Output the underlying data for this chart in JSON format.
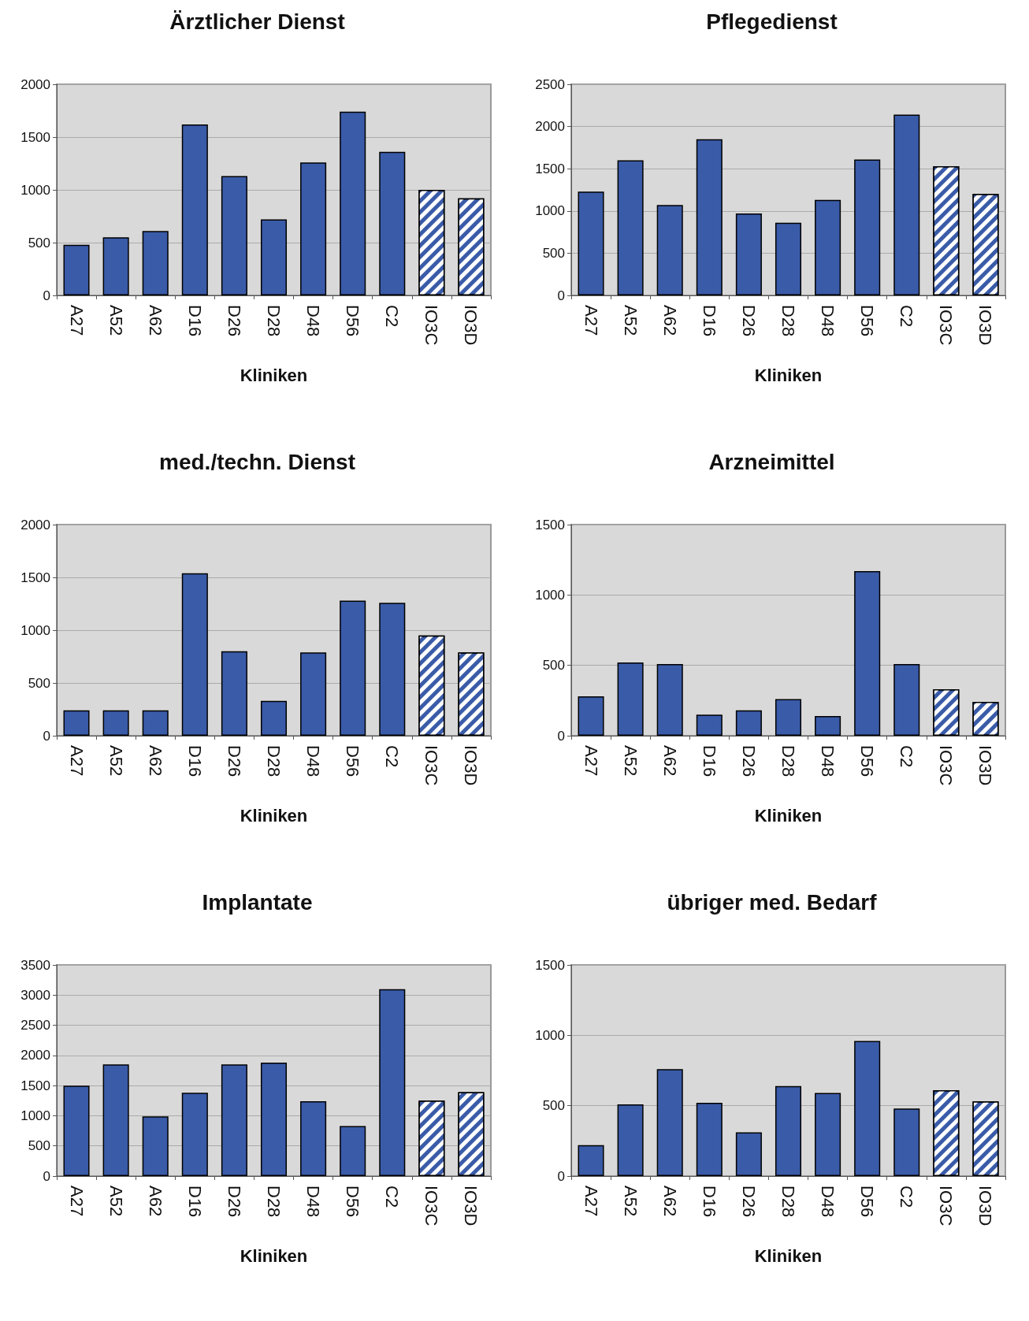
{
  "chart_data": [
    {
      "type": "bar",
      "title": "Ärztlicher Dienst",
      "xlabel": "Kliniken",
      "categories": [
        "A27",
        "A52",
        "A62",
        "D16",
        "D26",
        "D28",
        "D48",
        "D56",
        "C2",
        "IO3C",
        "IO3D"
      ],
      "series": [
        {
          "color": "#3a5ba8",
          "values": [
            480,
            550,
            610,
            1620,
            1130,
            720,
            1260,
            1740,
            1360,
            null,
            null
          ]
        },
        {
          "color": "#3a5ba8",
          "values": [
            null,
            null,
            null,
            null,
            null,
            null,
            null,
            null,
            null,
            1000,
            920
          ]
        }
      ],
      "ylim": [
        0,
        2000
      ],
      "yticks": [
        0,
        500,
        1000,
        1500,
        2000
      ],
      "grid": "y"
    },
    {
      "type": "bar",
      "title": "Pflegedienst",
      "xlabel": "Kliniken",
      "categories": [
        "A27",
        "A52",
        "A62",
        "D16",
        "D26",
        "D28",
        "D48",
        "D56",
        "C2",
        "IO3C",
        "IO3D"
      ],
      "series": [
        {
          "color": "#3a5ba8",
          "values": [
            1230,
            1600,
            1070,
            1850,
            970,
            860,
            1130,
            1610,
            2140,
            null,
            null
          ]
        },
        {
          "color": "#3a5ba8",
          "values": [
            null,
            null,
            null,
            null,
            null,
            null,
            null,
            null,
            null,
            1530,
            1200
          ]
        }
      ],
      "ylim": [
        0,
        2500
      ],
      "yticks": [
        0,
        500,
        1000,
        1500,
        2000,
        2500
      ],
      "grid": "y"
    },
    {
      "type": "bar",
      "title": "med./techn. Dienst",
      "xlabel": "Kliniken",
      "categories": [
        "A27",
        "A52",
        "A62",
        "D16",
        "D26",
        "D28",
        "D48",
        "D56",
        "C2",
        "IO3C",
        "IO3D"
      ],
      "series": [
        {
          "color": "#3a5ba8",
          "values": [
            240,
            240,
            240,
            1540,
            800,
            330,
            790,
            1280,
            1260,
            null,
            null
          ]
        },
        {
          "color": "#3a5ba8",
          "values": [
            null,
            null,
            null,
            null,
            null,
            null,
            null,
            null,
            null,
            950,
            790
          ]
        }
      ],
      "ylim": [
        0,
        2000
      ],
      "yticks": [
        0,
        500,
        1000,
        1500,
        2000
      ],
      "grid": "y"
    },
    {
      "type": "bar",
      "title": "Arzneimittel",
      "xlabel": "Kliniken",
      "categories": [
        "A27",
        "A52",
        "A62",
        "D16",
        "D26",
        "D28",
        "D48",
        "D56",
        "C2",
        "IO3C",
        "IO3D"
      ],
      "series": [
        {
          "color": "#3a5ba8",
          "values": [
            280,
            520,
            510,
            150,
            180,
            260,
            140,
            1170,
            510,
            null,
            null
          ]
        },
        {
          "color": "#3a5ba8",
          "values": [
            null,
            null,
            null,
            null,
            null,
            null,
            null,
            null,
            null,
            330,
            240
          ]
        }
      ],
      "ylim": [
        0,
        1500
      ],
      "yticks": [
        0,
        500,
        1000,
        1500
      ],
      "grid": "y"
    },
    {
      "type": "bar",
      "title": "Implantate",
      "xlabel": "Kliniken",
      "categories": [
        "A27",
        "A52",
        "A62",
        "D16",
        "D26",
        "D28",
        "D48",
        "D56",
        "C2",
        "IO3C",
        "IO3D"
      ],
      "series": [
        {
          "color": "#3a5ba8",
          "values": [
            1500,
            1850,
            990,
            1380,
            1850,
            1880,
            1240,
            830,
            3100,
            null,
            null
          ]
        },
        {
          "color": "#3a5ba8",
          "values": [
            null,
            null,
            null,
            null,
            null,
            null,
            null,
            null,
            null,
            1250,
            1390
          ]
        }
      ],
      "ylim": [
        0,
        3500
      ],
      "yticks": [
        0,
        500,
        1000,
        1500,
        2000,
        2500,
        3000,
        3500
      ],
      "grid": "y"
    },
    {
      "type": "bar",
      "title": "übriger med. Bedarf",
      "xlabel": "Kliniken",
      "categories": [
        "A27",
        "A52",
        "A62",
        "D16",
        "D26",
        "D28",
        "D48",
        "D56",
        "C2",
        "IO3C",
        "IO3D"
      ],
      "series": [
        {
          "color": "#3a5ba8",
          "values": [
            220,
            510,
            760,
            520,
            310,
            640,
            590,
            960,
            480,
            null,
            null
          ]
        },
        {
          "color": "#3a5ba8",
          "values": [
            null,
            null,
            null,
            null,
            null,
            null,
            null,
            null,
            null,
            610,
            530
          ]
        }
      ],
      "ylim": [
        0,
        1500
      ],
      "yticks": [
        0,
        500,
        1000,
        1500
      ],
      "grid": "y"
    }
  ]
}
